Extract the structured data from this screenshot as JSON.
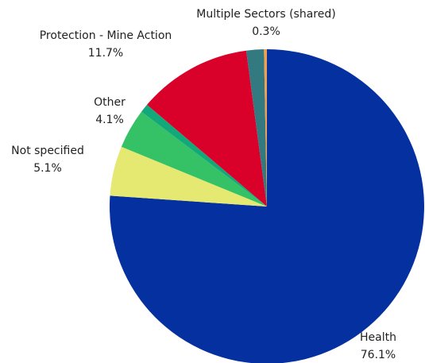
{
  "chart_data": {
    "type": "pie",
    "categories": [
      "Health",
      "Not specified",
      "Other",
      null,
      "Protection - Mine Action",
      null,
      "Multiple Sectors (shared)"
    ],
    "values": [
      76.1,
      5.1,
      4.1,
      0.9,
      11.7,
      1.8,
      0.3
    ],
    "value_labels": [
      "76.1%",
      "5.1%",
      "4.1%",
      null,
      "11.7%",
      null,
      "0.3%"
    ],
    "colors": [
      "#0530a0",
      "#e5e871",
      "#35c165",
      "#12a87a",
      "#d9002a",
      "#337a80",
      "#f0a050"
    ]
  }
}
